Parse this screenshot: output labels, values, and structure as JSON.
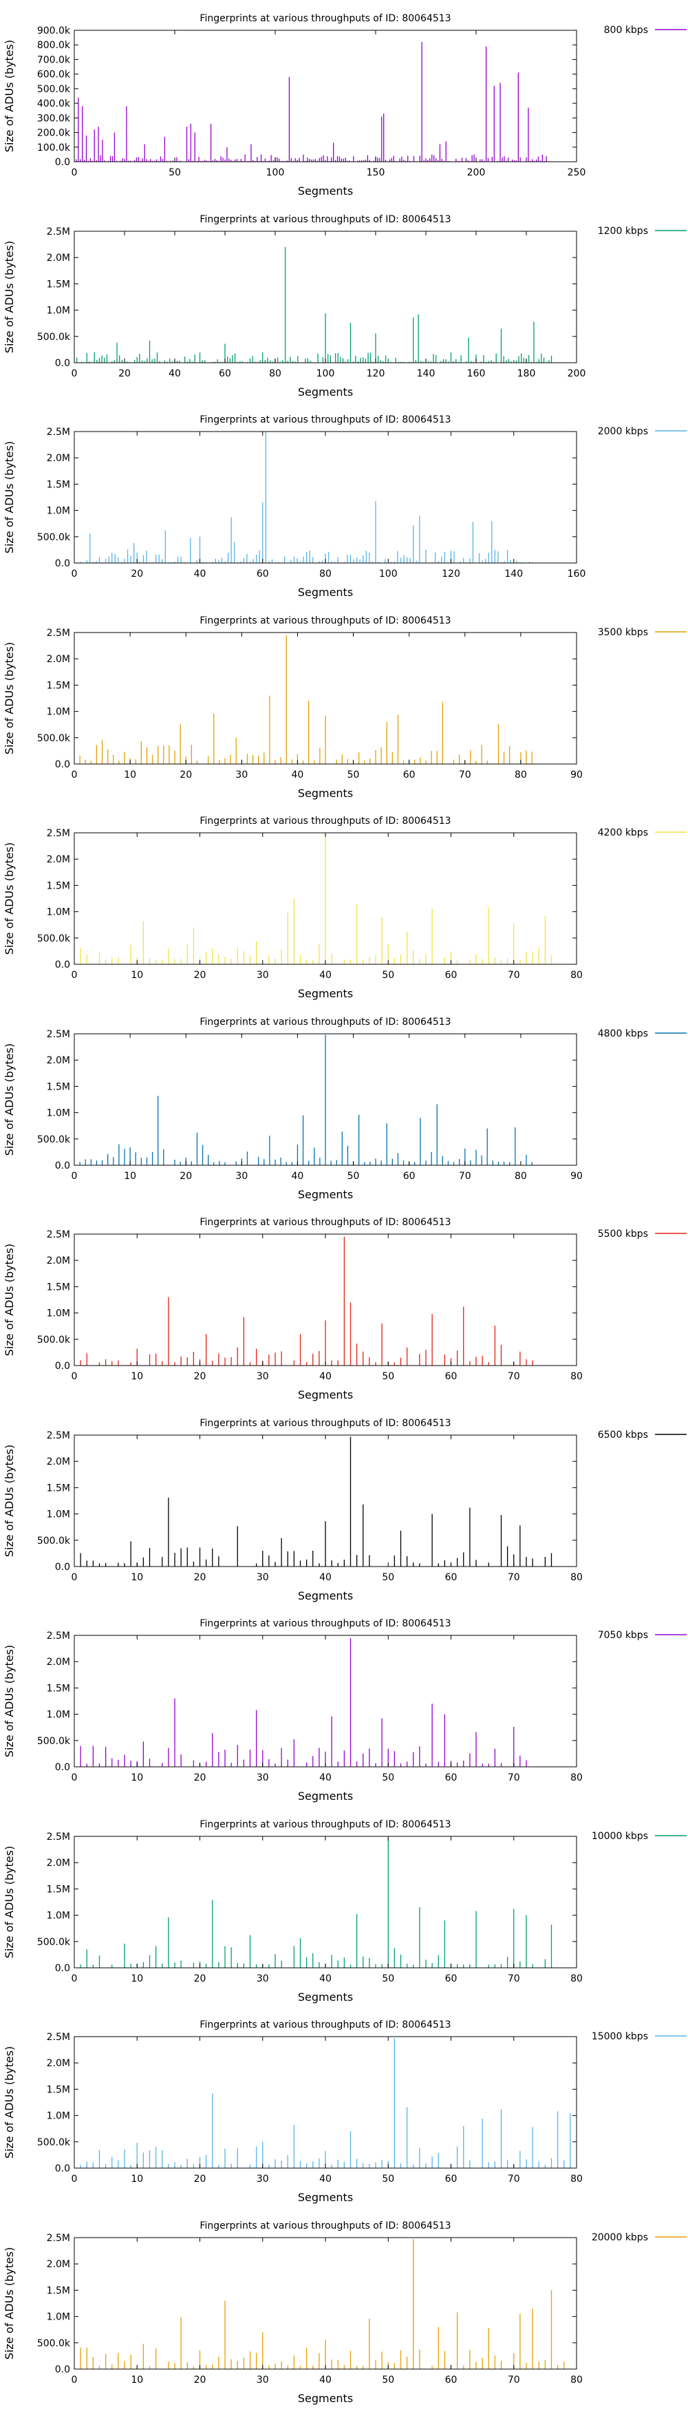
{
  "chart_data": [
    {
      "type": "bar",
      "title": "Fingerprints at various throughputs of ID: 80064513",
      "xlabel": "Segments",
      "ylabel": "Size of ADUs (bytes)",
      "series": [
        {
          "name": "800 kbps",
          "color": "#9400d3"
        }
      ],
      "xlim": [
        0,
        250
      ],
      "ylim": [
        0,
        900000
      ],
      "xticks": [
        0,
        50,
        100,
        150,
        200,
        250
      ],
      "yticks": [
        0,
        100000,
        200000,
        300000,
        400000,
        500000,
        600000,
        700000,
        800000,
        900000
      ],
      "ytick_labels": [
        "0.0",
        "100.0k",
        "200.0k",
        "300.0k",
        "400.0k",
        "500.0k",
        "600.0k",
        "700.0k",
        "800.0k",
        "900.0k"
      ],
      "n": 235,
      "seed": 800,
      "peaks": [
        [
          173,
          820000
        ],
        [
          205,
          790000
        ],
        [
          221,
          610000
        ],
        [
          107,
          580000
        ],
        [
          212,
          540000
        ],
        [
          209,
          520000
        ],
        [
          2,
          440000
        ],
        [
          4,
          380000
        ],
        [
          26,
          380000
        ],
        [
          226,
          370000
        ],
        [
          154,
          330000
        ],
        [
          153,
          310000
        ],
        [
          58,
          260000
        ],
        [
          68,
          260000
        ],
        [
          76,
          100000
        ]
      ],
      "base": [
        5000,
        50000
      ],
      "extra": [
        [
          10,
          220000
        ],
        [
          6,
          180000
        ],
        [
          12,
          240000
        ],
        [
          14,
          150000
        ],
        [
          20,
          200000
        ],
        [
          35,
          120000
        ],
        [
          45,
          170000
        ],
        [
          56,
          240000
        ],
        [
          60,
          200000
        ],
        [
          88,
          120000
        ],
        [
          129,
          130000
        ],
        [
          182,
          120000
        ],
        [
          185,
          140000
        ]
      ]
    },
    {
      "type": "bar",
      "title": "Fingerprints at various throughputs of ID: 80064513",
      "xlabel": "Segments",
      "ylabel": "Size of ADUs (bytes)",
      "series": [
        {
          "name": "1200 kbps",
          "color": "#009e73"
        }
      ],
      "xlim": [
        0,
        200
      ],
      "ylim": [
        0,
        2500000
      ],
      "xticks": [
        0,
        20,
        40,
        60,
        80,
        100,
        120,
        140,
        160,
        180,
        200
      ],
      "yticks": [
        0,
        500000,
        1000000,
        1500000,
        2000000,
        2500000
      ],
      "ytick_labels": [
        "0.0",
        "500.0k",
        "1.0M",
        "1.5M",
        "2.0M",
        "2.5M"
      ],
      "n": 190,
      "seed": 1200,
      "peaks": [
        [
          84,
          2200000
        ],
        [
          100,
          940000
        ],
        [
          137,
          920000
        ],
        [
          135,
          860000
        ],
        [
          110,
          760000
        ],
        [
          183,
          780000
        ],
        [
          120,
          560000
        ],
        [
          170,
          650000
        ],
        [
          157,
          480000
        ],
        [
          30,
          420000
        ],
        [
          17,
          380000
        ],
        [
          60,
          360000
        ]
      ],
      "base": [
        15000,
        200000
      ],
      "extra": []
    },
    {
      "type": "bar",
      "title": "Fingerprints at various throughputs of ID: 80064513",
      "xlabel": "Segments",
      "ylabel": "Size of ADUs (bytes)",
      "series": [
        {
          "name": "2000 kbps",
          "color": "#56b4e9"
        }
      ],
      "xlim": [
        0,
        160
      ],
      "ylim": [
        0,
        2500000
      ],
      "xticks": [
        0,
        20,
        40,
        60,
        80,
        100,
        120,
        140,
        160
      ],
      "yticks": [
        0,
        500000,
        1000000,
        1500000,
        2000000,
        2500000
      ],
      "ytick_labels": [
        "0.0",
        "500.0k",
        "1.0M",
        "1.5M",
        "2.0M",
        "2.5M"
      ],
      "n": 146,
      "seed": 2000,
      "peaks": [
        [
          61,
          2500000
        ],
        [
          96,
          1180000
        ],
        [
          60,
          1150000
        ],
        [
          110,
          900000
        ],
        [
          50,
          870000
        ],
        [
          127,
          780000
        ],
        [
          133,
          800000
        ],
        [
          108,
          720000
        ],
        [
          29,
          620000
        ],
        [
          5,
          560000
        ],
        [
          40,
          500000
        ],
        [
          37,
          480000
        ],
        [
          51,
          400000
        ],
        [
          19,
          380000
        ]
      ],
      "base": [
        15000,
        260000
      ],
      "extra": []
    },
    {
      "type": "bar",
      "title": "Fingerprints at various throughputs of ID: 80064513",
      "xlabel": "Segments",
      "ylabel": "Size of ADUs (bytes)",
      "series": [
        {
          "name": "3500 kbps",
          "color": "#e69f00"
        }
      ],
      "xlim": [
        0,
        90
      ],
      "ylim": [
        0,
        2500000
      ],
      "xticks": [
        0,
        10,
        20,
        30,
        40,
        50,
        60,
        70,
        80,
        90
      ],
      "yticks": [
        0,
        500000,
        1000000,
        1500000,
        2000000,
        2500000
      ],
      "ytick_labels": [
        "0.0",
        "500.0k",
        "1.0M",
        "1.5M",
        "2.0M",
        "2.5M"
      ],
      "n": 82,
      "seed": 3500,
      "peaks": [
        [
          38,
          2450000
        ],
        [
          35,
          1300000
        ],
        [
          42,
          1200000
        ],
        [
          66,
          1180000
        ],
        [
          25,
          960000
        ],
        [
          45,
          920000
        ],
        [
          56,
          800000
        ],
        [
          58,
          940000
        ],
        [
          19,
          760000
        ],
        [
          76,
          760000
        ],
        [
          5,
          460000
        ],
        [
          12,
          430000
        ],
        [
          29,
          500000
        ]
      ],
      "base": [
        60000,
        380000
      ],
      "extra": []
    },
    {
      "type": "bar",
      "title": "Fingerprints at various throughputs of ID: 80064513",
      "xlabel": "Segments",
      "ylabel": "Size of ADUs (bytes)",
      "series": [
        {
          "name": "4200 kbps",
          "color": "#f0e442"
        }
      ],
      "xlim": [
        0,
        80
      ],
      "ylim": [
        0,
        2500000
      ],
      "xticks": [
        0,
        10,
        20,
        30,
        40,
        50,
        60,
        70,
        80
      ],
      "yticks": [
        0,
        500000,
        1000000,
        1500000,
        2000000,
        2500000
      ],
      "ytick_labels": [
        "0.0",
        "500.0k",
        "1.0M",
        "1.5M",
        "2.0M",
        "2.5M"
      ],
      "n": 76,
      "seed": 4200,
      "peaks": [
        [
          40,
          2500000
        ],
        [
          35,
          1250000
        ],
        [
          45,
          1150000
        ],
        [
          57,
          1050000
        ],
        [
          66,
          1080000
        ],
        [
          34,
          980000
        ],
        [
          49,
          900000
        ],
        [
          75,
          920000
        ],
        [
          11,
          820000
        ],
        [
          70,
          780000
        ],
        [
          19,
          700000
        ],
        [
          53,
          620000
        ],
        [
          29,
          440000
        ]
      ],
      "base": [
        80000,
        400000
      ],
      "extra": []
    },
    {
      "type": "bar",
      "title": "Fingerprints at various throughputs of ID: 80064513",
      "xlabel": "Segments",
      "ylabel": "Size of ADUs (bytes)",
      "series": [
        {
          "name": "4800 kbps",
          "color": "#0072b2"
        }
      ],
      "xlim": [
        0,
        90
      ],
      "ylim": [
        0,
        2500000
      ],
      "xticks": [
        0,
        10,
        20,
        30,
        40,
        50,
        60,
        70,
        80,
        90
      ],
      "yticks": [
        0,
        500000,
        1000000,
        1500000,
        2000000,
        2500000
      ],
      "ytick_labels": [
        "0.0",
        "500.0k",
        "1.0M",
        "1.5M",
        "2.0M",
        "2.5M"
      ],
      "n": 82,
      "seed": 4800,
      "peaks": [
        [
          45,
          2480000
        ],
        [
          15,
          1320000
        ],
        [
          65,
          1160000
        ],
        [
          41,
          950000
        ],
        [
          51,
          960000
        ],
        [
          62,
          900000
        ],
        [
          79,
          720000
        ],
        [
          74,
          700000
        ],
        [
          22,
          620000
        ],
        [
          56,
          800000
        ],
        [
          35,
          560000
        ],
        [
          48,
          640000
        ],
        [
          10,
          340000
        ]
      ],
      "base": [
        60000,
        420000
      ],
      "extra": []
    },
    {
      "type": "bar",
      "title": "Fingerprints at various throughputs of ID: 80064513",
      "xlabel": "Segments",
      "ylabel": "Size of ADUs (bytes)",
      "series": [
        {
          "name": "5500 kbps",
          "color": "#e51e10"
        }
      ],
      "xlim": [
        0,
        80
      ],
      "ylim": [
        0,
        2500000
      ],
      "xticks": [
        0,
        10,
        20,
        30,
        40,
        50,
        60,
        70,
        80
      ],
      "yticks": [
        0,
        500000,
        1000000,
        1500000,
        2000000,
        2500000
      ],
      "ytick_labels": [
        "0.0",
        "500.0k",
        "1.0M",
        "1.5M",
        "2.0M",
        "2.5M"
      ],
      "n": 73,
      "seed": 5500,
      "peaks": [
        [
          43,
          2450000
        ],
        [
          15,
          1300000
        ],
        [
          44,
          1200000
        ],
        [
          62,
          1120000
        ],
        [
          57,
          980000
        ],
        [
          27,
          920000
        ],
        [
          40,
          860000
        ],
        [
          49,
          800000
        ],
        [
          67,
          760000
        ],
        [
          36,
          600000
        ],
        [
          21,
          600000
        ],
        [
          10,
          320000
        ]
      ],
      "base": [
        60000,
        420000
      ],
      "extra": []
    },
    {
      "type": "bar",
      "title": "Fingerprints at various throughputs of ID: 80064513",
      "xlabel": "Segments",
      "ylabel": "Size of ADUs (bytes)",
      "series": [
        {
          "name": "6500 kbps",
          "color": "#000000"
        }
      ],
      "xlim": [
        0,
        80
      ],
      "ylim": [
        0,
        2500000
      ],
      "xticks": [
        0,
        10,
        20,
        30,
        40,
        50,
        60,
        70,
        80
      ],
      "yticks": [
        0,
        500000,
        1000000,
        1500000,
        2000000,
        2500000
      ],
      "ytick_labels": [
        "0.0",
        "500.0k",
        "1.0M",
        "1.5M",
        "2.0M",
        "2.5M"
      ],
      "n": 76,
      "seed": 6500,
      "peaks": [
        [
          44,
          2470000
        ],
        [
          15,
          1310000
        ],
        [
          46,
          1180000
        ],
        [
          63,
          1120000
        ],
        [
          57,
          1000000
        ],
        [
          68,
          980000
        ],
        [
          26,
          770000
        ],
        [
          40,
          860000
        ],
        [
          52,
          680000
        ],
        [
          71,
          780000
        ],
        [
          9,
          480000
        ],
        [
          33,
          540000
        ],
        [
          20,
          360000
        ]
      ],
      "base": [
        60000,
        420000
      ],
      "extra": []
    },
    {
      "type": "bar",
      "title": "Fingerprints at various throughputs of ID: 80064513",
      "xlabel": "Segments",
      "ylabel": "Size of ADUs (bytes)",
      "series": [
        {
          "name": "7050 kbps",
          "color": "#9400d3"
        }
      ],
      "xlim": [
        0,
        80
      ],
      "ylim": [
        0,
        2500000
      ],
      "xticks": [
        0,
        10,
        20,
        30,
        40,
        50,
        60,
        70,
        80
      ],
      "yticks": [
        0,
        500000,
        1000000,
        1500000,
        2000000,
        2500000
      ],
      "ytick_labels": [
        "0.0",
        "500.0k",
        "1.0M",
        "1.5M",
        "2.0M",
        "2.5M"
      ],
      "n": 74,
      "seed": 7050,
      "peaks": [
        [
          44,
          2450000
        ],
        [
          16,
          1300000
        ],
        [
          29,
          1080000
        ],
        [
          57,
          1200000
        ],
        [
          59,
          1000000
        ],
        [
          49,
          920000
        ],
        [
          41,
          960000
        ],
        [
          70,
          760000
        ],
        [
          22,
          640000
        ],
        [
          64,
          660000
        ],
        [
          11,
          480000
        ],
        [
          35,
          520000
        ]
      ],
      "base": [
        60000,
        420000
      ],
      "extra": []
    },
    {
      "type": "bar",
      "title": "Fingerprints at various throughputs of ID: 80064513",
      "xlabel": "Segments",
      "ylabel": "Size of ADUs (bytes)",
      "series": [
        {
          "name": "10000 kbps",
          "color": "#009e73"
        }
      ],
      "xlim": [
        0,
        80
      ],
      "ylim": [
        0,
        2500000
      ],
      "xticks": [
        0,
        10,
        20,
        30,
        40,
        50,
        60,
        70,
        80
      ],
      "yticks": [
        0,
        500000,
        1000000,
        1500000,
        2000000,
        2500000
      ],
      "ytick_labels": [
        "0.0",
        "500.0k",
        "1.0M",
        "1.5M",
        "2.0M",
        "2.5M"
      ],
      "n": 78,
      "seed": 10000,
      "peaks": [
        [
          50,
          2470000
        ],
        [
          22,
          1290000
        ],
        [
          55,
          1150000
        ],
        [
          70,
          1120000
        ],
        [
          64,
          1080000
        ],
        [
          45,
          1020000
        ],
        [
          15,
          960000
        ],
        [
          72,
          1000000
        ],
        [
          59,
          900000
        ],
        [
          76,
          820000
        ],
        [
          28,
          620000
        ],
        [
          8,
          460000
        ],
        [
          36,
          560000
        ]
      ],
      "base": [
        60000,
        420000
      ],
      "extra": []
    },
    {
      "type": "bar",
      "title": "Fingerprints at various throughputs of ID: 80064513",
      "xlabel": "Segments",
      "ylabel": "Size of ADUs (bytes)",
      "series": [
        {
          "name": "15000 kbps",
          "color": "#56b4e9"
        }
      ],
      "xlim": [
        0,
        80
      ],
      "ylim": [
        0,
        2500000
      ],
      "xticks": [
        0,
        10,
        20,
        30,
        40,
        50,
        60,
        70,
        80
      ],
      "yticks": [
        0,
        500000,
        1000000,
        1500000,
        2000000,
        2500000
      ],
      "ytick_labels": [
        "0.0",
        "500.0k",
        "1.0M",
        "1.5M",
        "2.0M",
        "2.5M"
      ],
      "n": 79,
      "seed": 15000,
      "peaks": [
        [
          51,
          2470000
        ],
        [
          22,
          1420000
        ],
        [
          53,
          1160000
        ],
        [
          68,
          1120000
        ],
        [
          77,
          1080000
        ],
        [
          79,
          1040000
        ],
        [
          65,
          940000
        ],
        [
          35,
          820000
        ],
        [
          62,
          800000
        ],
        [
          73,
          780000
        ],
        [
          44,
          700000
        ],
        [
          10,
          480000
        ],
        [
          30,
          500000
        ]
      ],
      "base": [
        60000,
        420000
      ],
      "extra": []
    },
    {
      "type": "bar",
      "title": "Fingerprints at various throughputs of ID: 80064513",
      "xlabel": "Segments",
      "ylabel": "Size of ADUs (bytes)",
      "series": [
        {
          "name": "20000 kbps",
          "color": "#e69f00"
        }
      ],
      "xlim": [
        0,
        80
      ],
      "ylim": [
        0,
        2500000
      ],
      "xticks": [
        0,
        10,
        20,
        30,
        40,
        50,
        60,
        70,
        80
      ],
      "yticks": [
        0,
        500000,
        1000000,
        1500000,
        2000000,
        2500000
      ],
      "ytick_labels": [
        "0.0",
        "500.0k",
        "1.0M",
        "1.5M",
        "2.0M",
        "2.5M"
      ],
      "n": 78,
      "seed": 20000,
      "peaks": [
        [
          54,
          2470000
        ],
        [
          76,
          1500000
        ],
        [
          24,
          1300000
        ],
        [
          73,
          1150000
        ],
        [
          61,
          1080000
        ],
        [
          71,
          1050000
        ],
        [
          17,
          980000
        ],
        [
          47,
          960000
        ],
        [
          30,
          700000
        ],
        [
          58,
          800000
        ],
        [
          66,
          780000
        ],
        [
          11,
          480000
        ],
        [
          40,
          560000
        ]
      ],
      "base": [
        60000,
        420000
      ],
      "extra": []
    }
  ]
}
